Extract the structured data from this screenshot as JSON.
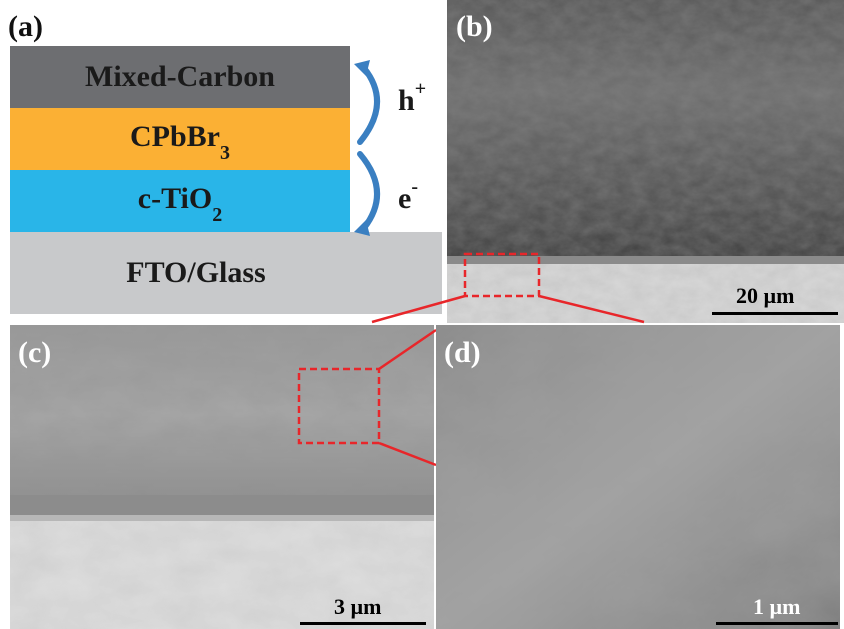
{
  "panels": {
    "a": {
      "label": "(a)",
      "layers": {
        "carbon": "Mixed-Carbon",
        "perovskite_main": "CPbBr",
        "perovskite_sub": "3",
        "tio2_main": "c-TiO",
        "tio2_sub": "2",
        "fto": "FTO/Glass"
      },
      "carriers": {
        "hole_main": "h",
        "hole_sup": "+",
        "electron_main": "e",
        "electron_sup": "-"
      },
      "colors": {
        "carbon": "#6d6e71",
        "perovskite": "#fbb034",
        "tio2": "#29b5e8",
        "fto": "#c8c9cb",
        "arrow": "#3a7fc1"
      }
    },
    "b": {
      "label": "(b)",
      "scale": "20 µm"
    },
    "c": {
      "label": "(c)",
      "scale": "3 µm"
    },
    "d": {
      "label": "(d)",
      "scale": "1 µm"
    }
  },
  "colors": {
    "zoom_box": "#e8262a"
  }
}
